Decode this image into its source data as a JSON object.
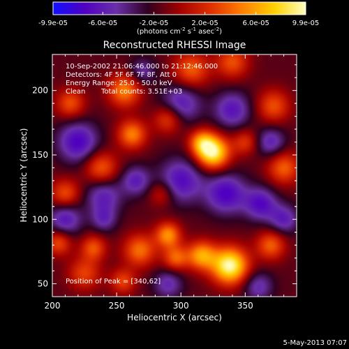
{
  "chart_data": {
    "type": "heatmap",
    "title": "Reconstructed RHESSI Image",
    "xlabel": "Heliocentric X (arcsec)",
    "ylabel": "Heliocentric Y (arcsec)",
    "xlim": [
      200,
      390
    ],
    "ylim": [
      40,
      228
    ],
    "x_ticks": [
      200,
      250,
      300,
      350
    ],
    "y_ticks": [
      50,
      100,
      150,
      200
    ],
    "colorbar": {
      "min": -9.9e-05,
      "max": 9.9e-05,
      "tick_labels": [
        "-9.9e-05",
        "-6.0e-05",
        "-2.0e-05",
        "2.0e-05",
        "6.0e-05",
        "9.9e-05"
      ],
      "units_label": "(photons cm",
      "units_sup1": "-2",
      "units_mid": " s",
      "units_sup2": "-1",
      "units_end": " asec",
      "units_sup3": "-2",
      "units_close": ")",
      "colors": [
        "#1010ff",
        "#5000c0",
        "#6a30a8",
        "#300020",
        "#a00000",
        "#e03000",
        "#ff8000",
        "#ffd000",
        "#ffffc0"
      ]
    },
    "annotations": {
      "time_range": "10-Sep-2002 21:06:46.000 to 21:12:46.000",
      "detectors": "Detectors: 4F 5F 6F 7F 8F, Att 0",
      "energy_range": "Energy Range: 25.0 - 50.0 keV",
      "clean_label": "Clean",
      "total_counts": "Total counts: 3.51E+03",
      "peak_position": "Position of Peak = [340,62]"
    },
    "peak": [
      340,
      62
    ],
    "blobs": [
      {
        "x": 325,
        "y": 152,
        "sigma": 9,
        "amp": 1.1
      },
      {
        "x": 316,
        "y": 160,
        "sigma": 7,
        "amp": 0.6
      },
      {
        "x": 338,
        "y": 64,
        "sigma": 10,
        "amp": 1.15
      },
      {
        "x": 316,
        "y": 72,
        "sigma": 8,
        "amp": 0.75
      },
      {
        "x": 290,
        "y": 88,
        "sigma": 7,
        "amp": 0.7
      },
      {
        "x": 296,
        "y": 70,
        "sigma": 7,
        "amp": 0.55
      },
      {
        "x": 268,
        "y": 76,
        "sigma": 9,
        "amp": 0.6
      },
      {
        "x": 370,
        "y": 80,
        "sigma": 8,
        "amp": 0.55
      },
      {
        "x": 232,
        "y": 78,
        "sigma": 7,
        "amp": 0.5
      },
      {
        "x": 225,
        "y": 58,
        "sigma": 9,
        "amp": 0.45
      },
      {
        "x": 255,
        "y": 52,
        "sigma": 7,
        "amp": 0.45
      },
      {
        "x": 205,
        "y": 82,
        "sigma": 7,
        "amp": 0.5
      },
      {
        "x": 210,
        "y": 120,
        "sigma": 8,
        "amp": 0.5
      },
      {
        "x": 238,
        "y": 140,
        "sigma": 9,
        "amp": 0.55
      },
      {
        "x": 262,
        "y": 166,
        "sigma": 8,
        "amp": 0.65
      },
      {
        "x": 256,
        "y": 200,
        "sigma": 9,
        "amp": 0.65
      },
      {
        "x": 290,
        "y": 178,
        "sigma": 8,
        "amp": 0.5
      },
      {
        "x": 308,
        "y": 216,
        "sigma": 10,
        "amp": 0.55
      },
      {
        "x": 340,
        "y": 222,
        "sigma": 9,
        "amp": 0.5
      },
      {
        "x": 372,
        "y": 188,
        "sigma": 9,
        "amp": 0.5
      },
      {
        "x": 380,
        "y": 140,
        "sigma": 9,
        "amp": 0.55
      },
      {
        "x": 350,
        "y": 160,
        "sigma": 7,
        "amp": 0.4
      },
      {
        "x": 214,
        "y": 190,
        "sigma": 8,
        "amp": 0.5
      },
      {
        "x": 285,
        "y": 120,
        "sigma": 7,
        "amp": 0.35
      },
      {
        "x": 220,
        "y": 160,
        "sigma": 11,
        "amp": -0.6
      },
      {
        "x": 210,
        "y": 100,
        "sigma": 9,
        "amp": -0.5
      },
      {
        "x": 240,
        "y": 118,
        "sigma": 10,
        "amp": -0.45
      },
      {
        "x": 265,
        "y": 130,
        "sigma": 8,
        "amp": -0.45
      },
      {
        "x": 300,
        "y": 130,
        "sigma": 12,
        "amp": -0.55
      },
      {
        "x": 335,
        "y": 120,
        "sigma": 11,
        "amp": -0.6
      },
      {
        "x": 362,
        "y": 112,
        "sigma": 9,
        "amp": -0.55
      },
      {
        "x": 380,
        "y": 100,
        "sigma": 8,
        "amp": -0.45
      },
      {
        "x": 300,
        "y": 190,
        "sigma": 11,
        "amp": -0.5
      },
      {
        "x": 340,
        "y": 185,
        "sigma": 10,
        "amp": -0.5
      },
      {
        "x": 370,
        "y": 160,
        "sigma": 8,
        "amp": -0.45
      },
      {
        "x": 240,
        "y": 100,
        "sigma": 7,
        "amp": -0.35
      },
      {
        "x": 290,
        "y": 50,
        "sigma": 8,
        "amp": -0.4
      },
      {
        "x": 360,
        "y": 48,
        "sigma": 8,
        "amp": -0.4
      },
      {
        "x": 270,
        "y": 215,
        "sigma": 7,
        "amp": -0.35
      }
    ]
  },
  "footer": {
    "timestamp": "5-May-2013 07:07"
  }
}
